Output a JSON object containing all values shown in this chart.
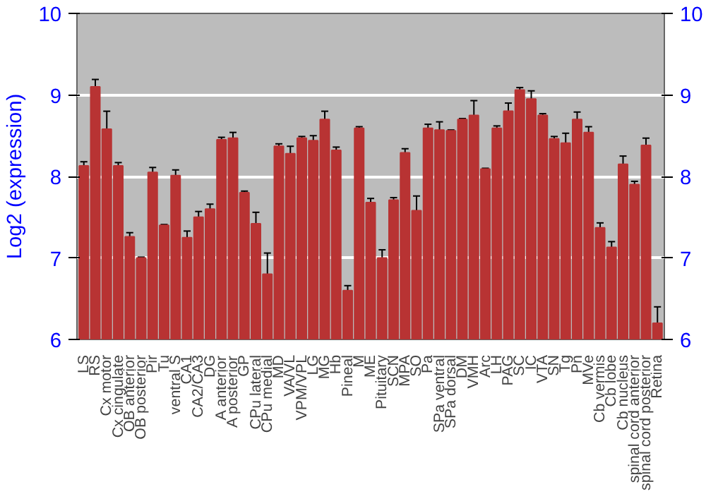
{
  "chart_data": {
    "type": "bar",
    "ylabel": "Log2 (expression)",
    "categories": [
      "LS",
      "RS",
      "Cx motor",
      "Cx cingulate",
      "OB anterior",
      "OB posterior",
      "Pir",
      "Tu",
      "ventral S",
      "CA1",
      "CA2/CA3",
      "DG",
      "A anterior",
      "A posterior",
      "GP",
      "CPu lateral",
      "CPu medial",
      "MD",
      "VA/VL",
      "VPM/VPL",
      "LG",
      "MG",
      "Hb",
      "Pineal",
      "M",
      "ME",
      "Pituitary",
      "SCN",
      "MPA",
      "SO",
      "Pa",
      "SPa ventral",
      "SPa dorsal",
      "DM",
      "VMH",
      "Arc",
      "LH",
      "PAG",
      "SC",
      "IC",
      "VTA",
      "SN",
      "Tg",
      "Pn",
      "MVe",
      "Cb vermis",
      "Cb lobe",
      "Cb nucleus",
      "spinal cord anterior",
      "spinal cord posterior",
      "Retina"
    ],
    "values": [
      8.13,
      9.1,
      8.58,
      8.13,
      7.26,
      7.0,
      8.05,
      7.4,
      8.01,
      7.25,
      7.5,
      7.6,
      8.45,
      8.47,
      7.8,
      7.42,
      6.8,
      8.37,
      8.28,
      8.47,
      8.44,
      8.7,
      8.32,
      6.6,
      8.59,
      7.68,
      7.0,
      7.71,
      8.29,
      7.58,
      8.59,
      8.57,
      8.56,
      8.7,
      8.75,
      8.09,
      8.59,
      8.8,
      9.06,
      8.95,
      8.75,
      8.46,
      8.41,
      8.7,
      8.54,
      7.37,
      7.13,
      8.15,
      7.9,
      8.38,
      6.2
    ],
    "errors": [
      0.05,
      0.09,
      0.22,
      0.04,
      0.05,
      0.01,
      0.06,
      0.01,
      0.07,
      0.08,
      0.07,
      0.06,
      0.03,
      0.07,
      0.02,
      0.14,
      0.26,
      0.03,
      0.09,
      0.02,
      0.06,
      0.1,
      0.04,
      0.06,
      0.02,
      0.05,
      0.1,
      0.03,
      0.05,
      0.18,
      0.05,
      0.1,
      0.01,
      0.01,
      0.18,
      0.01,
      0.03,
      0.1,
      0.03,
      0.1,
      0.02,
      0.03,
      0.12,
      0.09,
      0.07,
      0.06,
      0.07,
      0.1,
      0.04,
      0.09,
      0.2
    ],
    "color": "#b83333",
    "ylim": [
      6,
      10
    ],
    "yticks": [
      6,
      7,
      8,
      9,
      10
    ],
    "y2lim": [
      6,
      10
    ],
    "y2ticks": [
      6,
      7,
      8,
      9,
      10
    ],
    "grid": "y"
  }
}
